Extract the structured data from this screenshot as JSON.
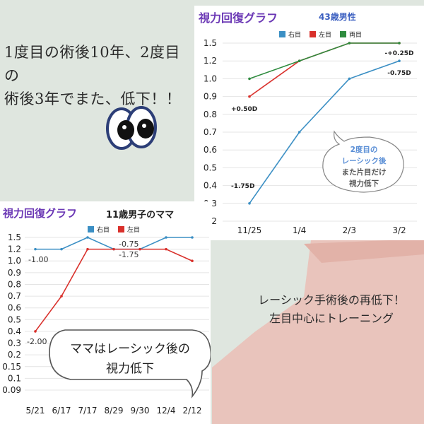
{
  "headline": [
    "1度目の術後10年、2度目の",
    "術後3年でまた、低下！！"
  ],
  "caption": [
    "レーシック手術後の再低下！",
    "左目中心にトレーニング"
  ],
  "colors": {
    "right": "#3b8fc4",
    "left": "#d9302b",
    "both": "#2e8b3e",
    "title": "#6b38b5",
    "subtitle1": "#3b5fc0",
    "subtitle2": "#222222"
  },
  "icons": [
    "eyes-icon",
    "speech-bubble"
  ],
  "chart_data": [
    {
      "type": "line",
      "title": "視力回復グラフ",
      "subtitle": "43歳男性",
      "categories": [
        "11/25",
        "1/4",
        "2/3",
        "3/2"
      ],
      "y_ticks": [
        "1.5",
        "1.2",
        "1.0",
        "0.9",
        "0.8",
        "0.7",
        "0.6",
        "0.5",
        "0.4",
        "0.3",
        "0.2"
      ],
      "series": [
        {
          "name": "右目",
          "values": [
            0.3,
            0.7,
            1.0,
            1.2
          ],
          "color": "#3b8fc4"
        },
        {
          "name": "左目",
          "values": [
            0.9,
            1.2,
            1.5,
            1.5
          ],
          "color": "#d9302b"
        },
        {
          "name": "両目",
          "values": [
            1.0,
            1.2,
            1.5,
            1.5
          ],
          "color": "#2e8b3e"
        }
      ],
      "annotations": [
        "+0.50D",
        "-1.75D",
        "-+0.25D",
        "-0.75D"
      ],
      "bubble": [
        "2度目の",
        "レーシック後",
        "また片目だけ",
        "視力低下"
      ],
      "legend": "top"
    },
    {
      "type": "line",
      "title": "視力回復グラフ",
      "subtitle": "11歳男子のママ",
      "categories": [
        "5/21",
        "6/17",
        "7/17",
        "8/29",
        "9/30",
        "12/4",
        "2/12"
      ],
      "y_ticks": [
        "1.5",
        "1.2",
        "1.0",
        "0.9",
        "0.8",
        "0.7",
        "0.6",
        "0.5",
        "0.4",
        "0.3",
        "0.2",
        "0.15",
        "0.1",
        "0.09"
      ],
      "series": [
        {
          "name": "右目",
          "values": [
            1.2,
            1.2,
            1.5,
            1.2,
            1.2,
            1.5,
            1.5
          ],
          "color": "#3b8fc4"
        },
        {
          "name": "左目",
          "values": [
            0.4,
            0.7,
            1.2,
            1.2,
            1.2,
            1.2,
            1.0
          ],
          "color": "#d9302b"
        }
      ],
      "annotations": [
        "-1.00",
        "-2.00",
        "-0.75",
        "-1.75"
      ],
      "bubble": [
        "ママはレーシック後の",
        "視力低下"
      ],
      "legend": "top"
    }
  ]
}
